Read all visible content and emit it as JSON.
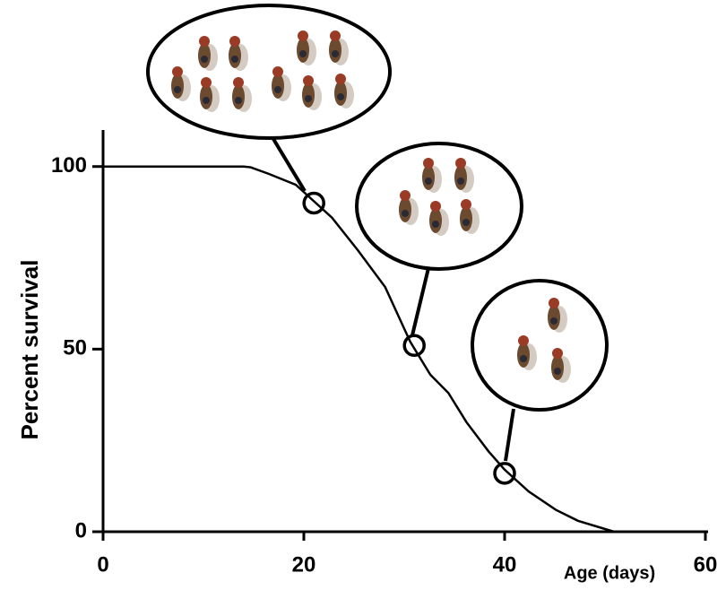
{
  "chart_data": {
    "type": "line",
    "x_label": "Age (days)",
    "y_label": "Percent survival",
    "x": [
      0,
      14,
      14.7,
      16.5,
      19.2,
      20.8,
      22.8,
      25.4,
      28.1,
      30.6,
      32.6,
      34.4,
      36.2,
      38.4,
      40,
      42.4,
      45.1,
      47.3,
      50.9
    ],
    "series": [
      {
        "color": "#000000",
        "values": [
          100,
          100,
          99.8,
          98,
          95,
          91,
          86,
          77,
          67,
          52,
          43,
          38,
          30,
          22,
          17,
          11,
          6,
          3,
          0
        ]
      }
    ],
    "highlights": {
      "x": [
        21,
        31,
        40
      ],
      "values": [
        90,
        51,
        16
      ]
    },
    "xlim": [
      0,
      60
    ],
    "ylim": [
      0,
      110
    ],
    "xticks": [
      0,
      20,
      40,
      60
    ],
    "yticks": [
      0,
      50,
      100
    ]
  }
}
